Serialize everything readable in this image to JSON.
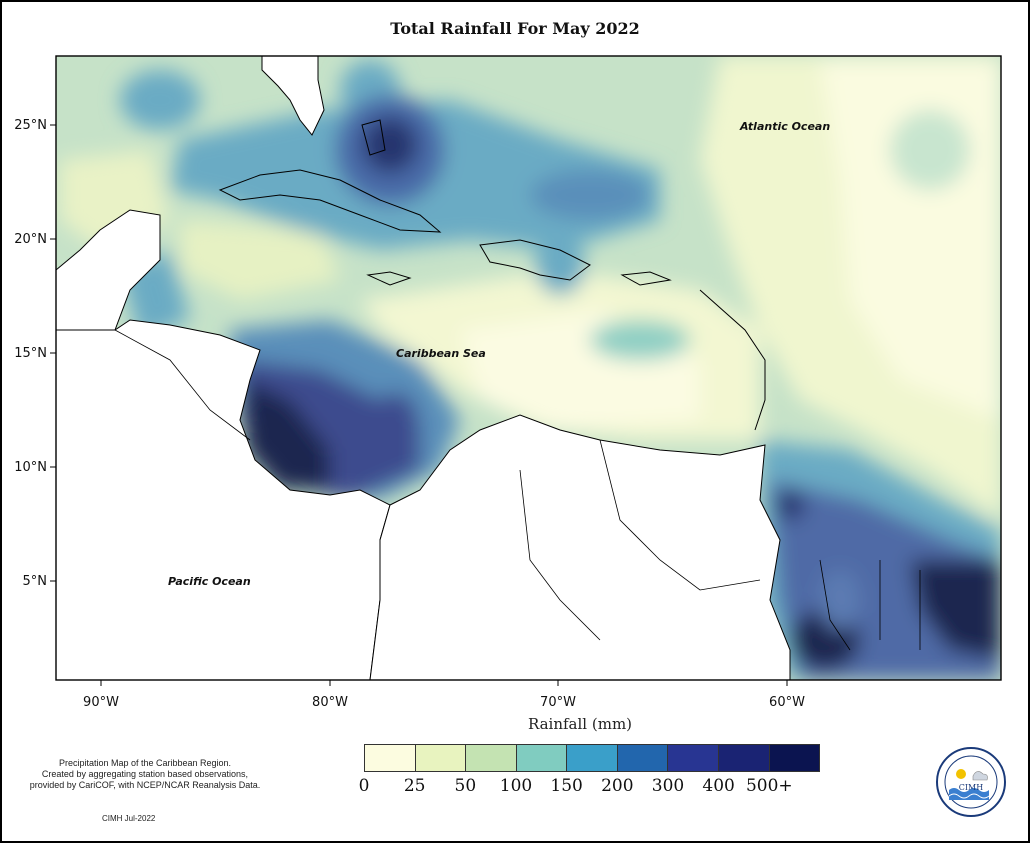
{
  "title": "Total Rainfall For May 2022",
  "map": {
    "lat_ticks": [
      "25°N",
      "20°N",
      "15°N",
      "10°N",
      "5°N"
    ],
    "lon_ticks": [
      "90°W",
      "80°W",
      "70°W",
      "60°W"
    ],
    "labels": {
      "atlantic": "Atlantic Ocean",
      "caribbean": "Caribbean Sea",
      "pacific": "Pacific Ocean"
    }
  },
  "legend": {
    "title": "Rainfall (mm)",
    "classes": [
      {
        "color": "#fcfce0"
      },
      {
        "color": "#e8f3bf"
      },
      {
        "color": "#c4e3b2"
      },
      {
        "color": "#80ccc0"
      },
      {
        "color": "#3a9fc9"
      },
      {
        "color": "#2266ad"
      },
      {
        "color": "#283592"
      },
      {
        "color": "#1a2373"
      },
      {
        "color": "#0b1450"
      }
    ],
    "ticks": [
      "0",
      "25",
      "50",
      "100",
      "150",
      "200",
      "300",
      "400",
      "500+"
    ]
  },
  "footnote": {
    "lines": [
      "Precipitation Map of the Caribbean Region.",
      "Created by aggregating station based observations,",
      "provided by CariCOF, with NCEP/NCAR Reanalysis Data."
    ],
    "credit": "CIMH Jul-2022"
  },
  "logo": {
    "text": "CIMH"
  }
}
